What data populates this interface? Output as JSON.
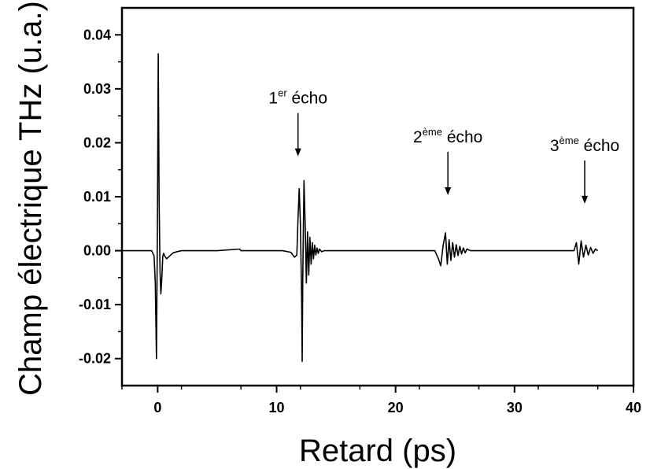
{
  "chart_data": {
    "type": "line",
    "xlabel": "Retard (ps)",
    "ylabel": "Champ électrique THz (u.a.)",
    "xlim": [
      -3,
      40
    ],
    "ylim": [
      -0.025,
      0.045
    ],
    "xticks": [
      0,
      10,
      20,
      30,
      40
    ],
    "xtick_labels": [
      "0",
      "10",
      "20",
      "30",
      "40"
    ],
    "yticks": [
      -0.02,
      -0.01,
      0.0,
      0.01,
      0.02,
      0.03,
      0.04
    ],
    "ytick_labels": [
      "-0.02",
      "-0.01",
      "0.00",
      "0.01",
      "0.02",
      "0.03",
      "0.04"
    ],
    "grid": false,
    "line_color": "#000000",
    "series": [
      {
        "x": [
          -3.0,
          -1.0,
          -0.5,
          -0.3,
          -0.2,
          -0.1,
          -0.02,
          0.05,
          0.12,
          0.2,
          0.27,
          0.35,
          0.43,
          0.5,
          0.6,
          0.75,
          0.9,
          1.1,
          1.3,
          1.6,
          2.0,
          3.0,
          5.0,
          6.9,
          7.0,
          7.1,
          9.0,
          10.5,
          11.2,
          11.5,
          11.7,
          11.8,
          11.9,
          12.0,
          12.1,
          12.15,
          12.2,
          12.3,
          12.4,
          12.5,
          12.6,
          12.7,
          12.8,
          12.9,
          13.0,
          13.1,
          13.2,
          13.3,
          13.4,
          13.5,
          13.6,
          13.8,
          14.0,
          14.5,
          15.0,
          18.0,
          21.0,
          23.3,
          23.6,
          23.8,
          24.0,
          24.2,
          24.35,
          24.5,
          24.65,
          24.8,
          24.95,
          25.1,
          25.25,
          25.4,
          25.55,
          25.7,
          25.85,
          26.0,
          26.3,
          27.0,
          29.0,
          32.0,
          34.5,
          35.0,
          35.2,
          35.4,
          35.6,
          35.8,
          36.0,
          36.2,
          36.4,
          36.6,
          36.8,
          37.0
        ],
        "y": [
          0.0,
          0.0,
          0.0,
          -0.001,
          -0.006,
          -0.02,
          0.005,
          0.0365,
          0.01,
          -0.004,
          -0.008,
          -0.005,
          -0.001,
          -0.0005,
          -0.001,
          -0.0015,
          -0.0012,
          -0.0008,
          -0.0004,
          -0.0002,
          0.0,
          0.0,
          0.0,
          0.0003,
          0.0,
          0.0,
          0.0,
          0.0,
          -0.0003,
          -0.0012,
          -0.0008,
          0.006,
          0.0115,
          0.005,
          -0.008,
          -0.0205,
          -0.005,
          0.013,
          0.005,
          -0.006,
          0.0035,
          -0.0045,
          0.0025,
          -0.0025,
          0.0015,
          -0.0015,
          0.001,
          -0.0008,
          0.0005,
          -0.0005,
          0.0003,
          -0.0002,
          0.0,
          0.0,
          0.0,
          0.0,
          0.0,
          0.0,
          -0.0015,
          -0.0028,
          0.001,
          0.0033,
          -0.0025,
          0.002,
          -0.0018,
          0.0015,
          -0.0012,
          0.0011,
          -0.0009,
          0.0008,
          -0.0006,
          0.0005,
          -0.0004,
          0.0003,
          0.0,
          0.0,
          0.0,
          0.0,
          0.0,
          0.0,
          0.0015,
          -0.0025,
          0.0018,
          -0.0012,
          0.001,
          -0.0008,
          0.0006,
          -0.0005,
          0.0003,
          0.0
        ]
      }
    ],
    "annotations": [
      {
        "base": "1",
        "sup": "er",
        "text": " écho",
        "arrow_x": 11.8,
        "arrow_y": 0.0175
      },
      {
        "base": "2",
        "sup": "ème",
        "text": " écho",
        "arrow_x": 24.4,
        "arrow_y": 0.0103
      },
      {
        "base": "3",
        "sup": "ème",
        "text": " écho",
        "arrow_x": 35.9,
        "arrow_y": 0.0087
      }
    ]
  }
}
